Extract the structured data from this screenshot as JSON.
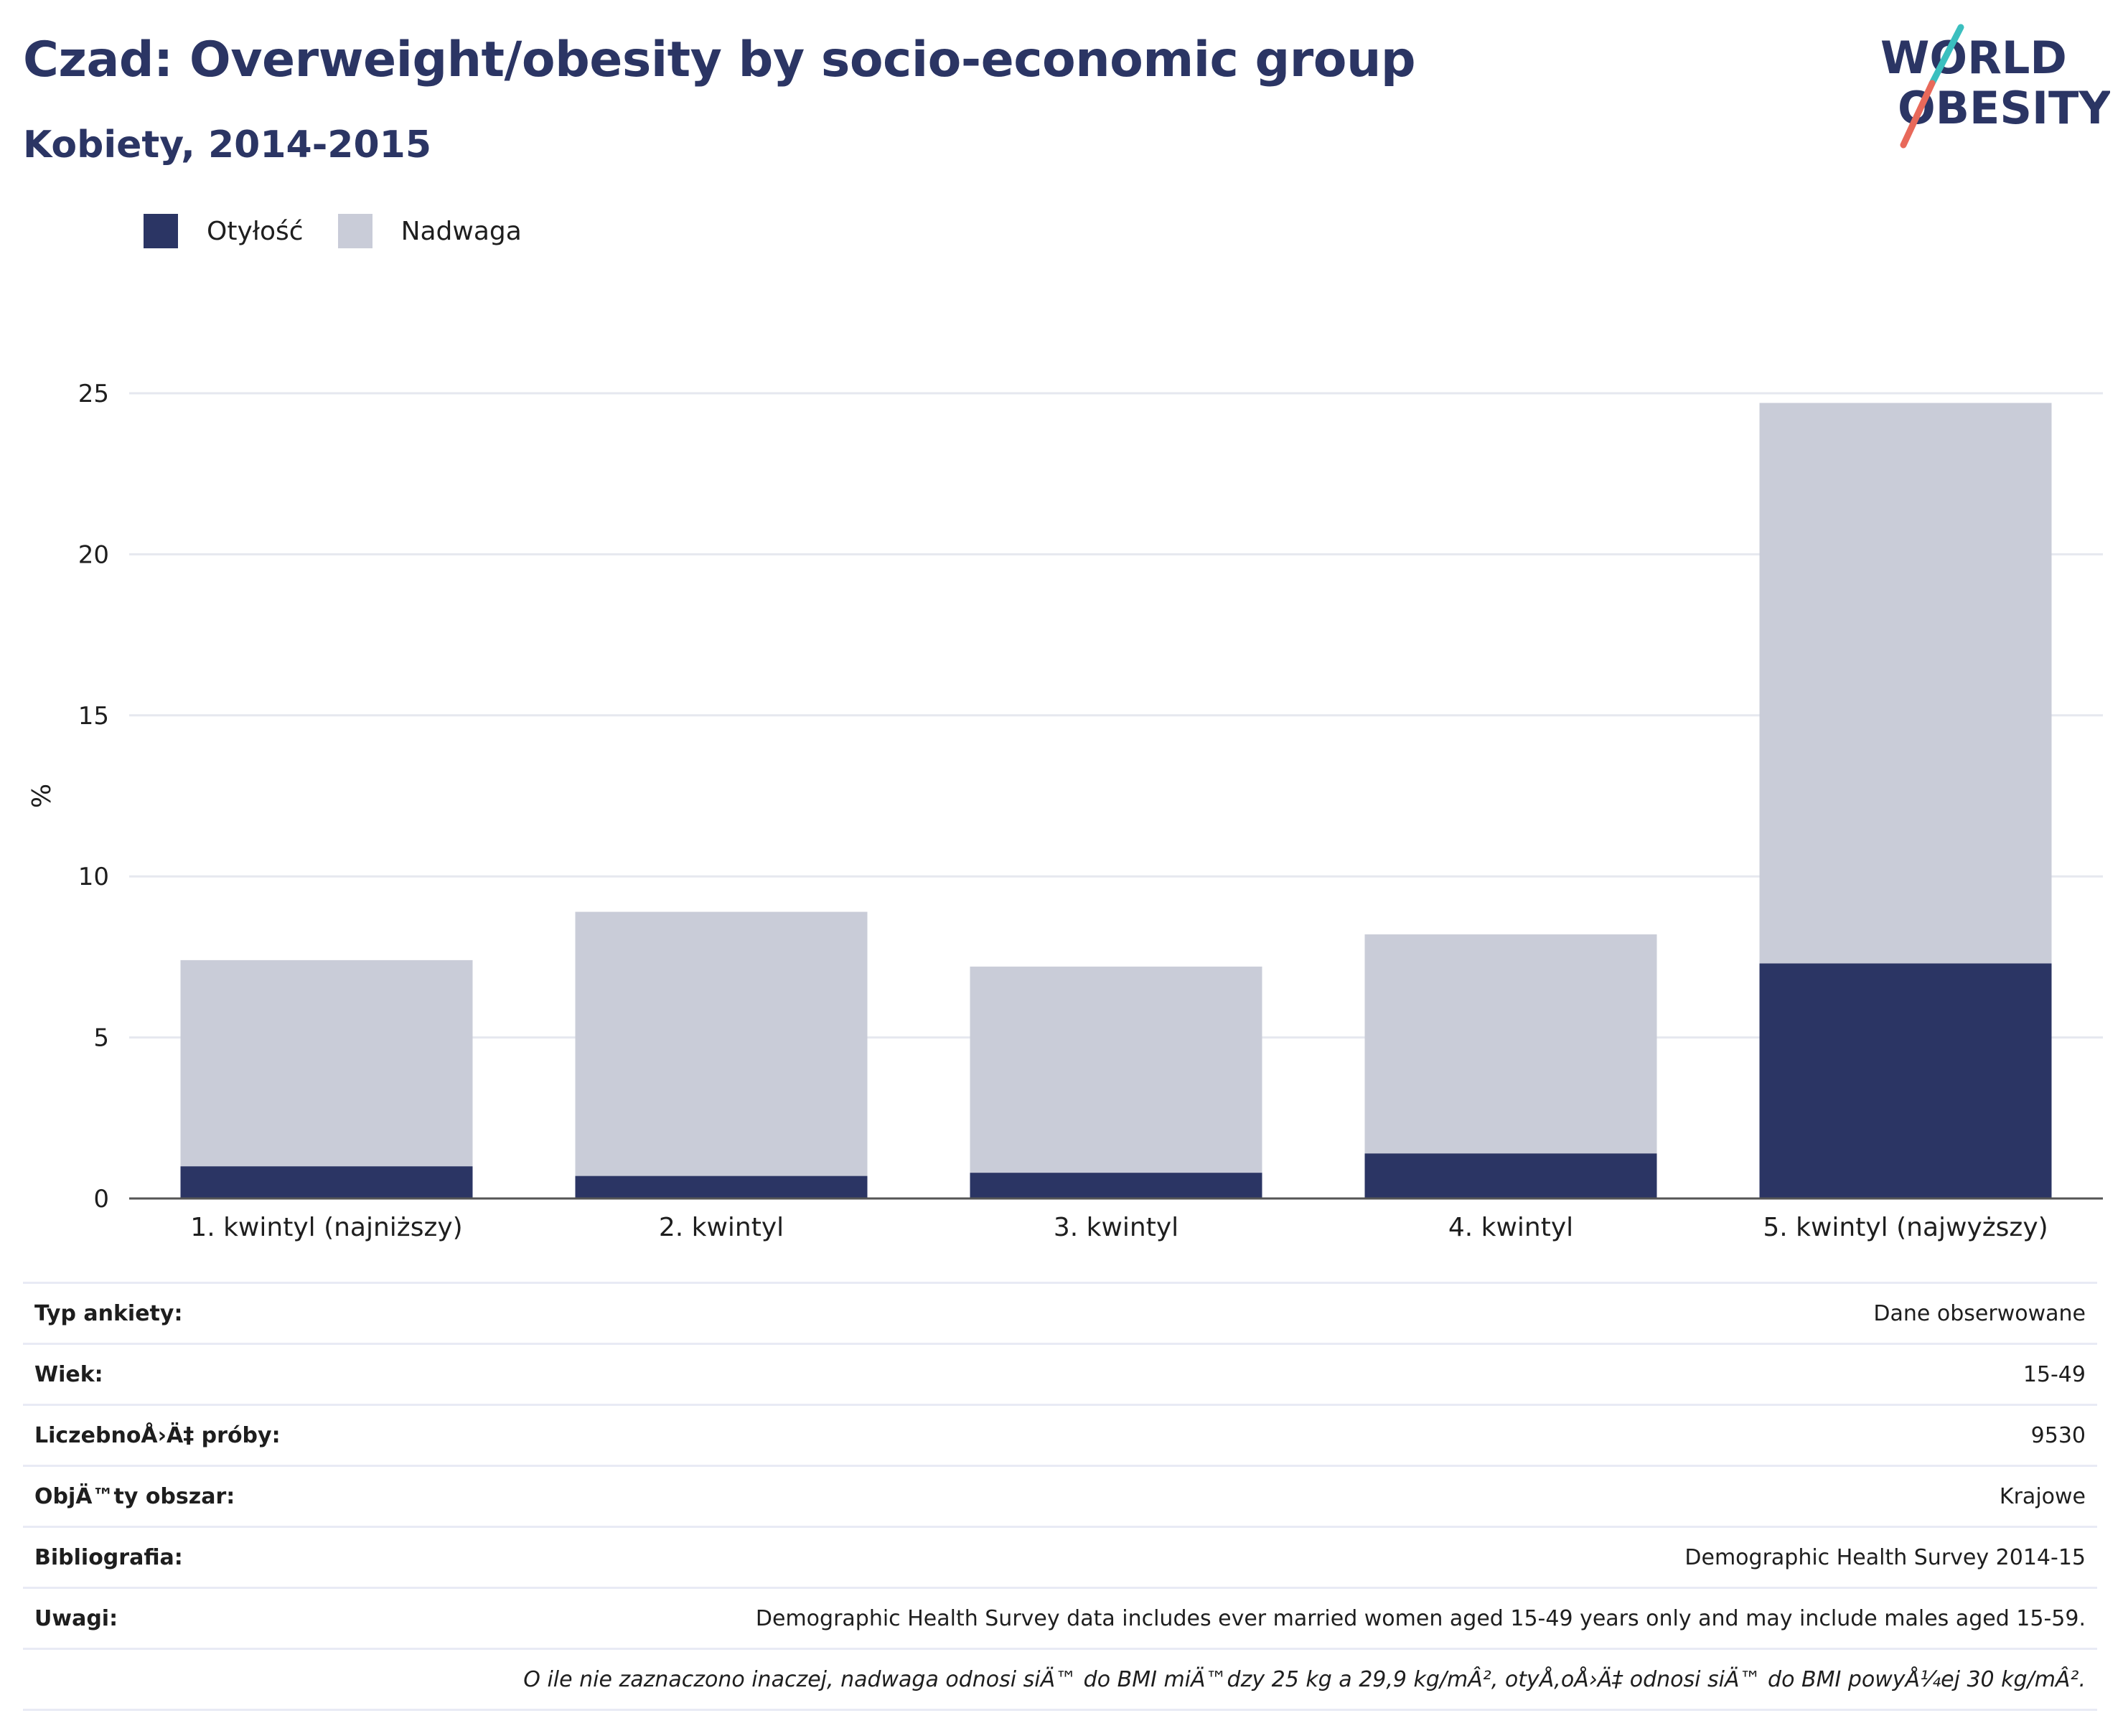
{
  "header": {
    "title": "Czad: Overweight/obesity by socio-economic group",
    "subtitle": "Kobiety, 2014-2015"
  },
  "logo": {
    "line1": "WORLD",
    "line2": "OBESITY",
    "colors": {
      "text": "#2b3564",
      "slash_teal": "#3bbfbf",
      "slash_coral": "#e8695a"
    }
  },
  "legend": {
    "items": [
      {
        "label": "Otyłość",
        "color": "#2b3564"
      },
      {
        "label": "Nadwaga",
        "color": "#c9ccd8"
      }
    ]
  },
  "chart_data": {
    "type": "bar",
    "stacked": true,
    "categories": [
      "1. kwintyl (najniższy)",
      "2. kwintyl",
      "3. kwintyl",
      "4. kwintyl",
      "5. kwintyl (najwyższy)"
    ],
    "series": [
      {
        "name": "Otyłość",
        "color": "#2b3564",
        "values": [
          1.0,
          0.7,
          0.8,
          1.4,
          7.3
        ]
      },
      {
        "name": "Nadwaga",
        "color": "#c9ccd8",
        "values": [
          6.4,
          8.2,
          6.4,
          6.8,
          17.4
        ]
      }
    ],
    "ylabel": "%",
    "ylim": [
      0,
      25
    ],
    "yticks": [
      0,
      5,
      10,
      15,
      20,
      25
    ],
    "grid": true
  },
  "meta": {
    "rows": [
      {
        "key": "Typ ankiety:",
        "value": "Dane obserwowane"
      },
      {
        "key": "Wiek:",
        "value": "15-49"
      },
      {
        "key": "LiczebnoÅ›Ä‡ próby:",
        "value": "9530"
      },
      {
        "key": "ObjÄ™ty obszar:",
        "value": "Krajowe"
      },
      {
        "key": "Bibliografia:",
        "value": "Demographic Health Survey 2014-15"
      },
      {
        "key": "Uwagi:",
        "value": "Demographic Health Survey data includes ever married women aged 15-49 years only and may include males aged 15-59."
      }
    ],
    "note": "O ile nie zaznaczono inaczej, nadwaga odnosi siÄ™ do BMI miÄ™dzy 25 kg a 29,9 kg/mÂ², otyÅ‚oÅ›Ä‡ odnosi siÄ™ do BMI powyÅ¼ej 30 kg/mÂ²."
  }
}
